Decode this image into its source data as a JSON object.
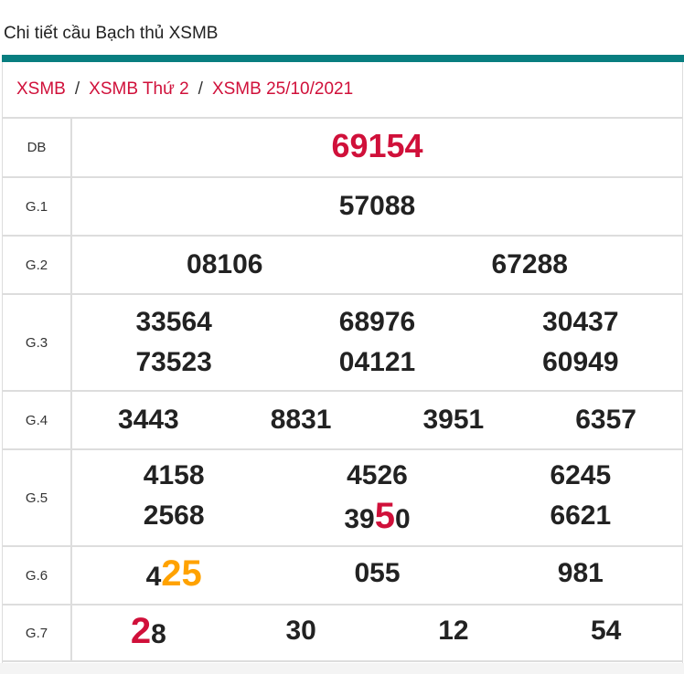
{
  "title": "Chi tiết cầu Bạch thủ XSMB",
  "breadcrumb": [
    "XSMB",
    "XSMB Thứ 2",
    "XSMB 25/10/2021"
  ],
  "colors": {
    "accent": "#087e80",
    "red": "#d0103a",
    "orange": "#ffa200"
  },
  "rows": [
    {
      "label": "DB",
      "h": 64,
      "lines": [
        [
          [
            {
              "t": "69154",
              "c": "red"
            }
          ]
        ]
      ]
    },
    {
      "label": "G.1",
      "h": 64,
      "lines": [
        [
          [
            {
              "t": "57088"
            }
          ]
        ]
      ]
    },
    {
      "label": "G.2",
      "h": 64,
      "lines": [
        [
          [
            {
              "t": "08106"
            }
          ],
          [
            {
              "t": "67288"
            }
          ]
        ]
      ]
    },
    {
      "label": "G.3",
      "h": 106,
      "lines": [
        [
          [
            {
              "t": "33564"
            }
          ],
          [
            {
              "t": "68976"
            }
          ],
          [
            {
              "t": "30437"
            }
          ]
        ],
        [
          [
            {
              "t": "73523"
            }
          ],
          [
            {
              "t": "04121"
            }
          ],
          [
            {
              "t": "60949"
            }
          ]
        ]
      ]
    },
    {
      "label": "G.4",
      "h": 64,
      "lines": [
        [
          [
            {
              "t": "3443"
            }
          ],
          [
            {
              "t": "8831"
            }
          ],
          [
            {
              "t": "3951"
            }
          ],
          [
            {
              "t": "6357"
            }
          ]
        ]
      ]
    },
    {
      "label": "G.5",
      "h": 106,
      "lines": [
        [
          [
            {
              "t": "4158"
            }
          ],
          [
            {
              "t": "4526"
            }
          ],
          [
            {
              "t": "6245"
            }
          ]
        ],
        [
          [
            {
              "t": "2568"
            }
          ],
          [
            {
              "t": "39"
            },
            {
              "t": "5",
              "c": "red",
              "big": true
            },
            {
              "t": "0"
            }
          ],
          [
            {
              "t": "6621"
            }
          ]
        ]
      ]
    },
    {
      "label": "G.6",
      "h": 64,
      "lines": [
        [
          [
            {
              "t": "4"
            },
            {
              "t": "25",
              "c": "orange",
              "big": true
            }
          ],
          [
            {
              "t": "055"
            }
          ],
          [
            {
              "t": "981"
            }
          ]
        ]
      ]
    },
    {
      "label": "G.7",
      "h": 62,
      "lines": [
        [
          [
            {
              "t": "2",
              "c": "red",
              "big": true
            },
            {
              "t": "8"
            }
          ],
          [
            {
              "t": "30"
            }
          ],
          [
            {
              "t": "12"
            }
          ],
          [
            {
              "t": "54"
            }
          ]
        ]
      ]
    }
  ]
}
